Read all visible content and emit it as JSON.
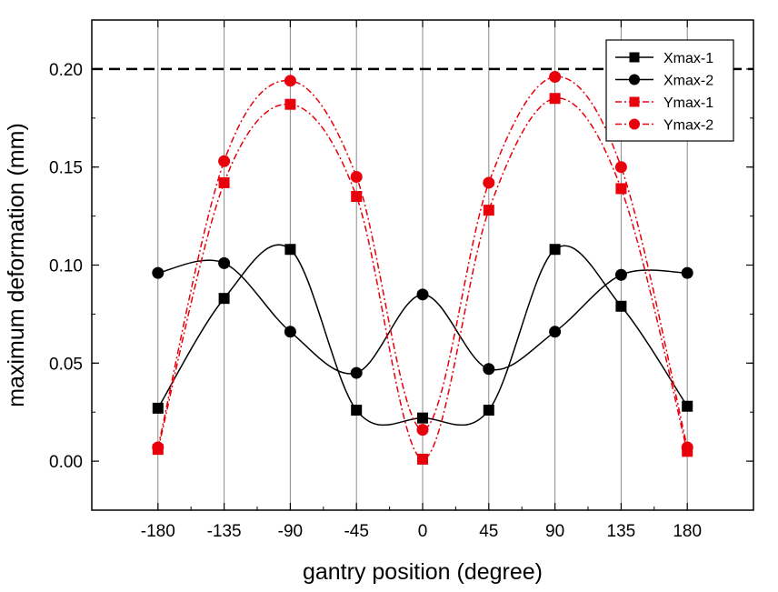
{
  "chart_data": {
    "type": "line",
    "title": "",
    "xlabel": "gantry position (degree)",
    "ylabel": "maximum deformation (mm)",
    "x": [
      -180,
      -135,
      -90,
      -45,
      0,
      45,
      90,
      135,
      180
    ],
    "xticks": [
      -180,
      -135,
      -90,
      -45,
      0,
      45,
      90,
      135,
      180
    ],
    "xtick_labels": [
      "-180",
      "-135",
      "-90",
      "-45",
      "0",
      "45",
      "90",
      "135",
      "180"
    ],
    "yticks": [
      0.0,
      0.05,
      0.1,
      0.15,
      0.2
    ],
    "ytick_labels": [
      "0.00",
      "0.05",
      "0.10",
      "0.15",
      "0.20"
    ],
    "xlim": [
      -225,
      225
    ],
    "ylim": [
      -0.025,
      0.225
    ],
    "grid": "vertical",
    "legend_position": "top-right",
    "threshold": {
      "value": 0.2,
      "style": "dashed",
      "color": "#000000"
    },
    "series": [
      {
        "name": "Xmax-1",
        "marker": "square",
        "color": "#000000",
        "line_style": "solid",
        "values": [
          0.027,
          0.083,
          0.108,
          0.026,
          0.022,
          0.026,
          0.108,
          0.079,
          0.028
        ]
      },
      {
        "name": "Xmax-2",
        "marker": "circle",
        "color": "#000000",
        "line_style": "solid",
        "values": [
          0.096,
          0.101,
          0.066,
          0.045,
          0.085,
          0.047,
          0.066,
          0.095,
          0.096
        ]
      },
      {
        "name": "Ymax-1",
        "marker": "square",
        "color": "#e8000b",
        "line_style": "dash-dot",
        "values": [
          0.006,
          0.142,
          0.182,
          0.135,
          0.001,
          0.128,
          0.185,
          0.139,
          0.005
        ]
      },
      {
        "name": "Ymax-2",
        "marker": "circle",
        "color": "#e8000b",
        "line_style": "dash-dot",
        "values": [
          0.007,
          0.153,
          0.194,
          0.145,
          0.016,
          0.142,
          0.196,
          0.15,
          0.007
        ]
      }
    ]
  }
}
